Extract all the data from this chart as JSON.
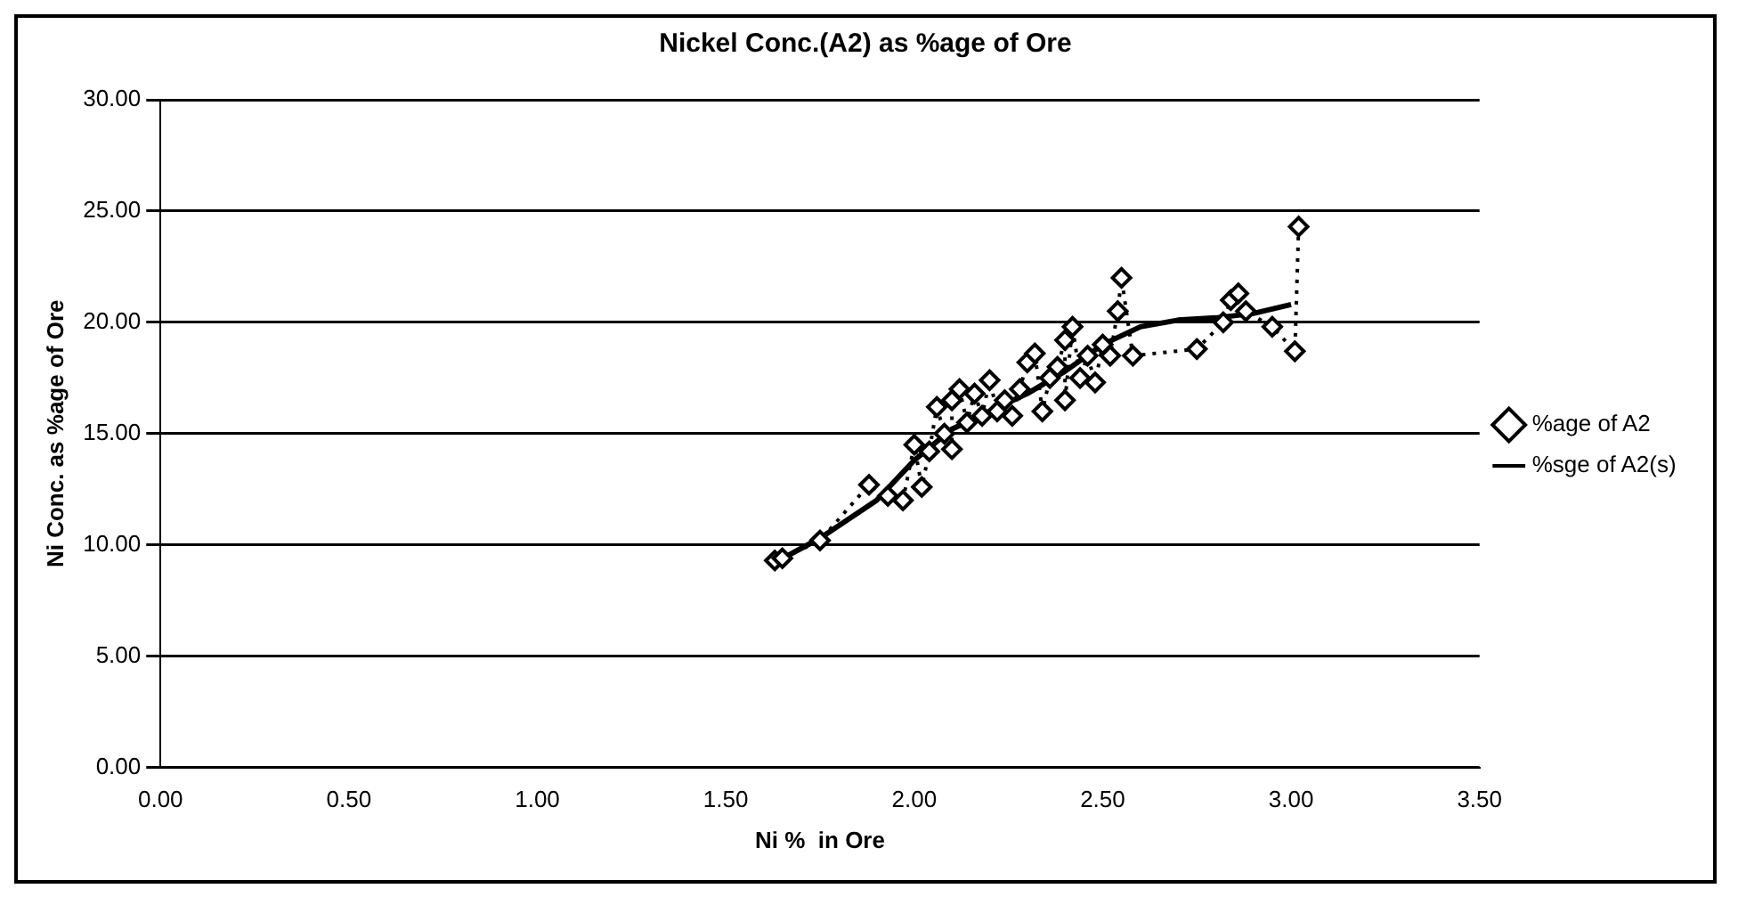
{
  "chart_data": {
    "type": "line",
    "title": "Nickel Conc.(A2) as %age of Ore",
    "xlabel": "Ni %  in Ore",
    "ylabel": "Ni Conc. as %age of Ore",
    "xlim": [
      0,
      3.5
    ],
    "ylim": [
      0,
      30
    ],
    "xticks": [
      {
        "value": 0,
        "label": "0.00"
      },
      {
        "value": 0.5,
        "label": "0.50"
      },
      {
        "value": 1,
        "label": "1.00"
      },
      {
        "value": 1.5,
        "label": "1.50"
      },
      {
        "value": 2,
        "label": "2.00"
      },
      {
        "value": 2.5,
        "label": "2.50"
      },
      {
        "value": 3,
        "label": "3.00"
      },
      {
        "value": 3.5,
        "label": "3.50"
      }
    ],
    "yticks": [
      {
        "value": 0,
        "label": "0.00"
      },
      {
        "value": 5,
        "label": "5.00"
      },
      {
        "value": 10,
        "label": "10.00"
      },
      {
        "value": 15,
        "label": "15.00"
      },
      {
        "value": 20,
        "label": "20.00"
      },
      {
        "value": 25,
        "label": "25.00"
      },
      {
        "value": 30,
        "label": "30.00"
      }
    ],
    "grid": "y",
    "legend": "right",
    "series": [
      {
        "name": "%age of A2",
        "color": "#000000",
        "marker": "diamond",
        "line_style": "dotted",
        "x": [
          1.63,
          1.65,
          1.75,
          1.88,
          1.93,
          1.97,
          2.0,
          2.02,
          2.04,
          2.06,
          2.08,
          2.1,
          2.1,
          2.12,
          2.14,
          2.16,
          2.18,
          2.2,
          2.22,
          2.24,
          2.26,
          2.28,
          2.3,
          2.32,
          2.34,
          2.36,
          2.38,
          2.4,
          2.4,
          2.42,
          2.44,
          2.46,
          2.48,
          2.5,
          2.52,
          2.54,
          2.55,
          2.58,
          2.75,
          2.82,
          2.84,
          2.86,
          2.88,
          2.95,
          3.01,
          3.02
        ],
        "values": [
          9.3,
          9.4,
          10.2,
          12.7,
          12.2,
          12.0,
          14.5,
          12.6,
          14.2,
          16.2,
          15.0,
          14.3,
          16.5,
          17.0,
          15.5,
          16.8,
          15.8,
          17.4,
          16.0,
          16.5,
          15.8,
          17.0,
          18.2,
          18.6,
          16.0,
          17.5,
          18.0,
          19.2,
          16.5,
          19.8,
          17.5,
          18.5,
          17.3,
          19.0,
          18.5,
          20.5,
          22.0,
          18.5,
          18.8,
          20.0,
          21.0,
          21.3,
          20.5,
          19.8,
          18.7,
          24.3
        ]
      },
      {
        "name": "%sge of A2(s)",
        "color": "#000000",
        "marker": "none",
        "line_style": "solid",
        "x": [
          1.63,
          1.75,
          1.9,
          2.0,
          2.1,
          2.2,
          2.3,
          2.4,
          2.5,
          2.6,
          2.7,
          2.8,
          2.9,
          3.0
        ],
        "values": [
          9.2,
          10.3,
          12.0,
          13.8,
          15.2,
          16.0,
          16.8,
          17.8,
          19.0,
          19.8,
          20.1,
          20.2,
          20.4,
          20.8
        ]
      }
    ]
  }
}
